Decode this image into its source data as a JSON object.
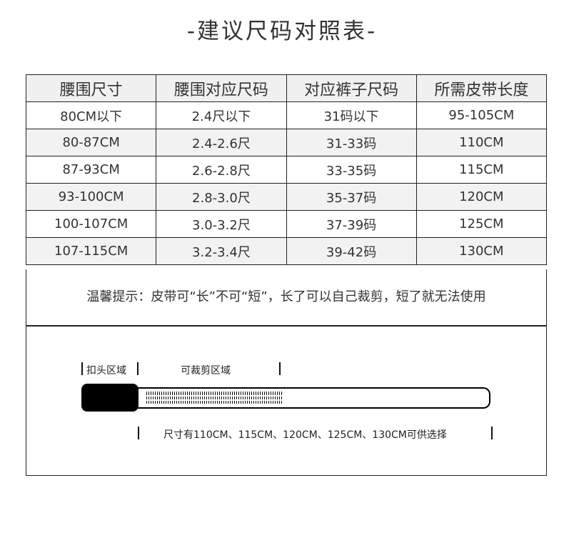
{
  "title": "-建议尺码对照表-",
  "table": {
    "headers": [
      "腰围尺寸",
      "腰围对应尺码",
      "对应裤子尺码",
      "所需皮带长度"
    ],
    "rows": [
      [
        "80CM以下",
        "2.4尺以下",
        "31码以下",
        "95-105CM"
      ],
      [
        "80-87CM",
        "2.4-2.6尺",
        "31-33码",
        "110CM"
      ],
      [
        "87-93CM",
        "2.6-2.8尺",
        "33-35码",
        "115CM"
      ],
      [
        "93-100CM",
        "2.8-3.0尺",
        "35-37码",
        "120CM"
      ],
      [
        "100-107CM",
        "3.0-3.2尺",
        "37-39码",
        "125CM"
      ],
      [
        "107-115CM",
        "3.2-3.4尺",
        "39-42码",
        "130CM"
      ]
    ]
  },
  "note": "温馨提示：皮带可“长”不可“短”，长了可以自己裁剪，短了就无法使用",
  "diagram": {
    "buckle_label": "扣头区域",
    "cut_label": "可裁剪区域",
    "sizes_label": "尺寸有110CM、115CM、120CM、125CM、130CM可供选择"
  }
}
